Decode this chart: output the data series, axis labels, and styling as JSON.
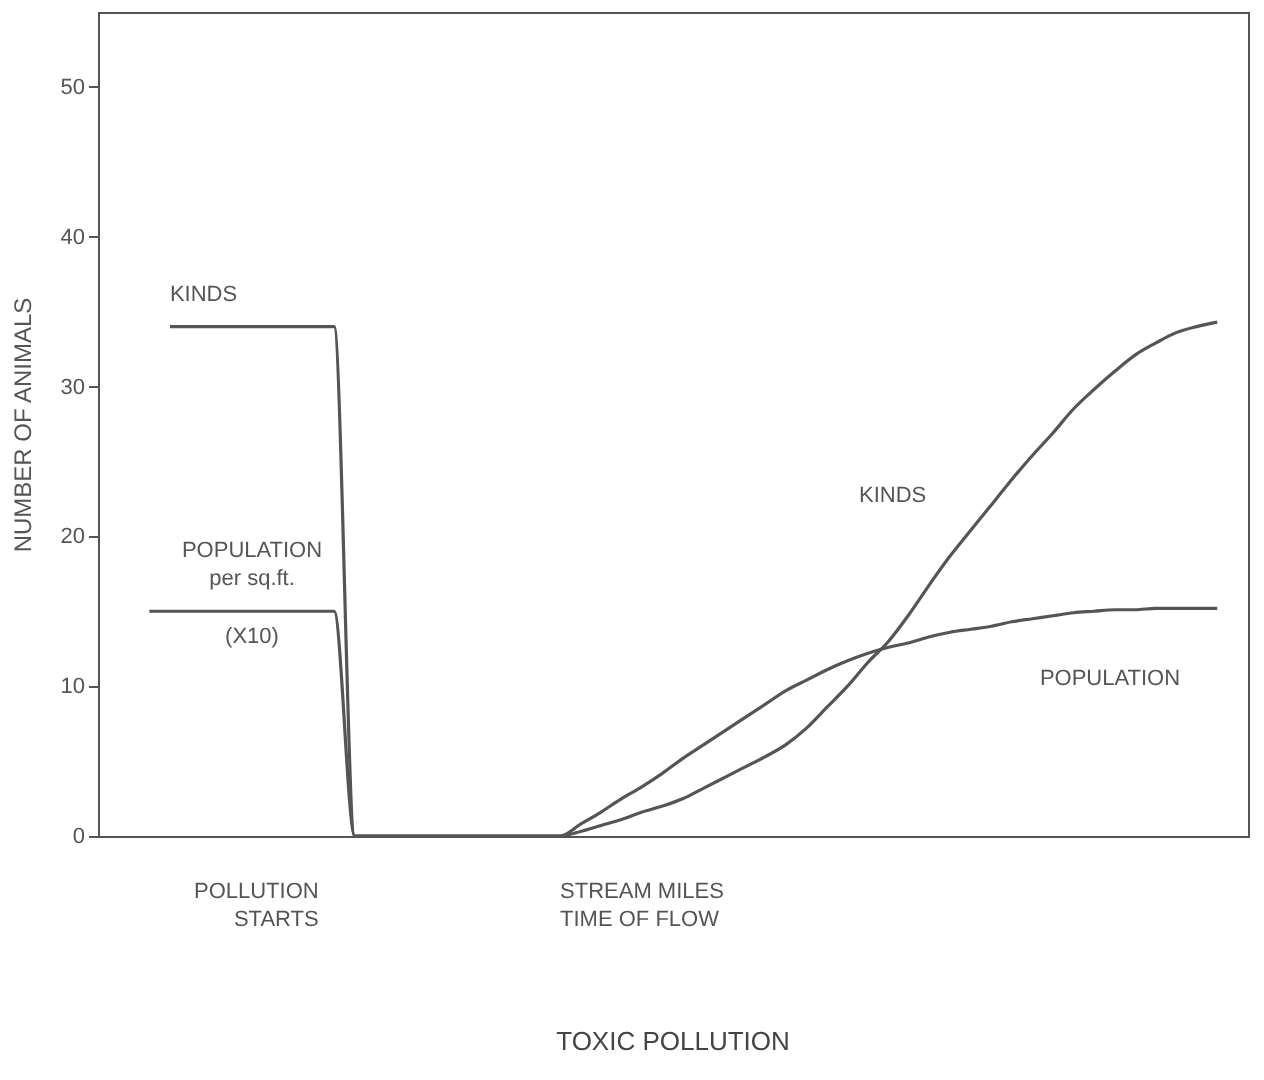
{
  "chart_data": {
    "type": "line",
    "title": "TOXIC POLLUTION",
    "ylabel": "NUMBER OF ANIMALS",
    "categories": [
      null,
      null,
      null,
      null,
      null,
      null,
      null,
      null,
      null,
      null,
      null,
      null,
      null,
      null,
      null,
      null,
      null,
      null,
      null,
      null,
      null,
      null,
      null,
      null,
      null,
      null,
      null,
      null,
      null,
      null,
      null,
      null,
      null,
      null,
      null,
      null,
      null,
      null,
      null,
      null,
      null,
      null,
      null,
      null,
      null,
      null,
      null,
      null,
      null,
      null,
      null,
      null,
      null,
      null,
      null,
      null
    ],
    "series": [
      {
        "name": "KINDS",
        "color": "#555555",
        "values": [
          null,
          null,
          null,
          34,
          34,
          34,
          34,
          34,
          34,
          34,
          34,
          34,
          0,
          0,
          0,
          0,
          0,
          0,
          0,
          0,
          0,
          0,
          0,
          0.3,
          0.7,
          1.1,
          1.6,
          2.0,
          2.5,
          3.2,
          3.9,
          4.6,
          5.3,
          6.1,
          7.2,
          8.6,
          10.0,
          11.6,
          13.0,
          14.8,
          16.8,
          18.7,
          20.4,
          22.1,
          23.8,
          25.4,
          26.9,
          28.5,
          29.8,
          31.0,
          32.1,
          32.9,
          33.6,
          34.0,
          34.3,
          null
        ]
      },
      {
        "name": "POPULATION",
        "color": "#555555",
        "values": [
          null,
          null,
          15,
          15,
          15,
          15,
          15,
          15,
          15,
          15,
          15,
          15,
          0,
          0,
          0,
          0,
          0,
          0,
          0,
          0,
          0,
          0,
          0,
          0.8,
          1.6,
          2.5,
          3.3,
          4.2,
          5.2,
          6.1,
          7.0,
          7.9,
          8.8,
          9.7,
          10.4,
          11.1,
          11.7,
          12.2,
          12.6,
          12.9,
          13.3,
          13.6,
          13.8,
          14.0,
          14.3,
          14.5,
          14.7,
          14.9,
          15.0,
          15.1,
          15.1,
          15.2,
          15.2,
          15.2,
          15.2,
          null
        ]
      }
    ],
    "ylim": [
      0,
      55
    ],
    "yticks": [
      0,
      10,
      20,
      30,
      40,
      50
    ],
    "annotations": [
      "KINDS",
      "POPULATION\nper sq.ft.",
      "(X10)",
      "POLLUTION\nSTARTS",
      "STREAM MILES\nTIME OF FLOW"
    ],
    "grid": false,
    "legend": false,
    "marker": "none",
    "line_style": "solid",
    "tick_labels": "y"
  }
}
